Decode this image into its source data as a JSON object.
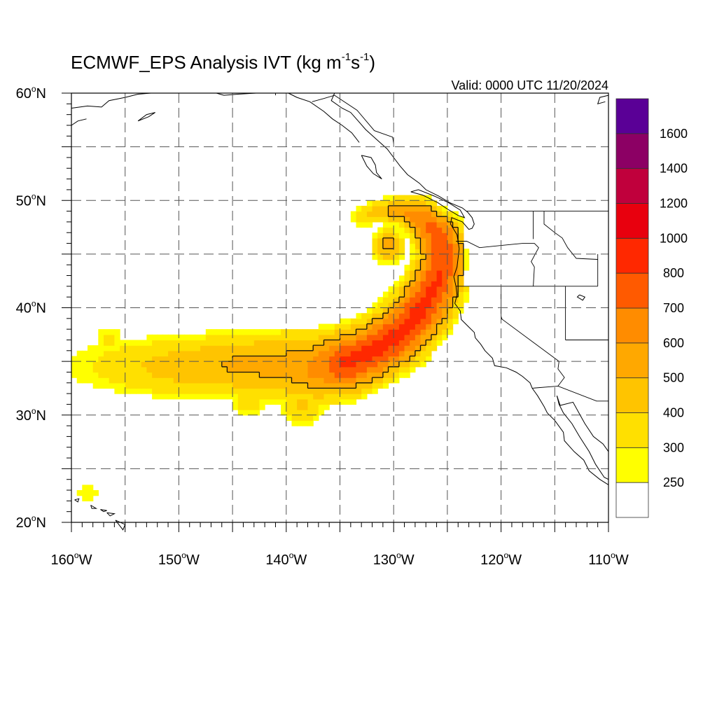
{
  "title_main": "ECMWF_EPS Analysis IVT (kg m",
  "title_sup1": "-1",
  "title_mid": "s",
  "title_sup2": "-1",
  "title_end": ")",
  "valid_label": "Valid: 0000 UTC 11/20/2024",
  "lat_labels": [
    {
      "num": "60",
      "deg": "o",
      "hem": "N",
      "lat": 60
    },
    {
      "num": "50",
      "deg": "o",
      "hem": "N",
      "lat": 50
    },
    {
      "num": "40",
      "deg": "o",
      "hem": "N",
      "lat": 40
    },
    {
      "num": "30",
      "deg": "o",
      "hem": "N",
      "lat": 30
    },
    {
      "num": "20",
      "deg": "o",
      "hem": "N",
      "lat": 20
    }
  ],
  "lon_labels": [
    {
      "num": "160",
      "deg": "o",
      "hem": "W",
      "lon": -160
    },
    {
      "num": "150",
      "deg": "o",
      "hem": "W",
      "lon": -150
    },
    {
      "num": "140",
      "deg": "o",
      "hem": "W",
      "lon": -140
    },
    {
      "num": "130",
      "deg": "o",
      "hem": "W",
      "lon": -130
    },
    {
      "num": "120",
      "deg": "o",
      "hem": "W",
      "lon": -120
    },
    {
      "num": "110",
      "deg": "o",
      "hem": "W",
      "lon": -110
    }
  ],
  "map_extent": {
    "lon_min": -160,
    "lon_max": -110,
    "lat_min": 20,
    "lat_max": 60
  },
  "colorbar": {
    "labels": [
      "250",
      "300",
      "400",
      "500",
      "600",
      "700",
      "800",
      "1000",
      "1200",
      "1400",
      "1600"
    ],
    "levels": [
      250,
      300,
      400,
      500,
      600,
      700,
      800,
      1000,
      1200,
      1400,
      1600
    ],
    "colors": [
      "#ffffff",
      "#ffff00",
      "#ffe000",
      "#ffc400",
      "#ffa800",
      "#ff8c00",
      "#ff5a00",
      "#ff2800",
      "#e8000e",
      "#c0003c",
      "#8c0064",
      "#5a0096"
    ]
  },
  "ivt_field": {
    "units": "kg m-1 s-1",
    "outline_level": 500,
    "axis_points": [
      [
        -160,
        34.5,
        260,
        4.0
      ],
      [
        -156,
        34.6,
        340,
        3.8
      ],
      [
        -152,
        34.5,
        430,
        3.5
      ],
      [
        -148,
        34.6,
        480,
        3.5
      ],
      [
        -144,
        34.7,
        520,
        3.6
      ],
      [
        -140,
        34.6,
        540,
        3.8
      ],
      [
        -137,
        34.4,
        640,
        3.6
      ],
      [
        -134.5,
        34.9,
        820,
        3.2
      ],
      [
        -132,
        35.9,
        830,
        3.0
      ],
      [
        -129.5,
        37.5,
        830,
        3.0
      ],
      [
        -127.5,
        39.7,
        830,
        2.9
      ],
      [
        -126,
        42.3,
        810,
        2.7
      ],
      [
        -125.3,
        44.6,
        790,
        2.5
      ],
      [
        -125.8,
        46.7,
        760,
        2.4
      ],
      [
        -127.5,
        48.4,
        680,
        1.9
      ],
      [
        -129.5,
        49.1,
        560,
        1.5
      ],
      [
        -131.5,
        48.9,
        470,
        1.3
      ],
      [
        -133,
        48.5,
        380,
        1.2
      ]
    ],
    "blobs": [
      [
        -130.5,
        45.8,
        540,
        1.4
      ],
      [
        -158.5,
        22.8,
        300,
        1.4
      ],
      [
        -153.5,
        20.3,
        270,
        0.5
      ],
      [
        -143.5,
        31.5,
        360,
        2.0
      ],
      [
        -138.5,
        31.0,
        420,
        2.0
      ],
      [
        -156.5,
        37.0,
        320,
        1.6
      ]
    ]
  },
  "colors": {
    "coast": "#000000",
    "grid": "#555555",
    "frame": "#000000"
  }
}
